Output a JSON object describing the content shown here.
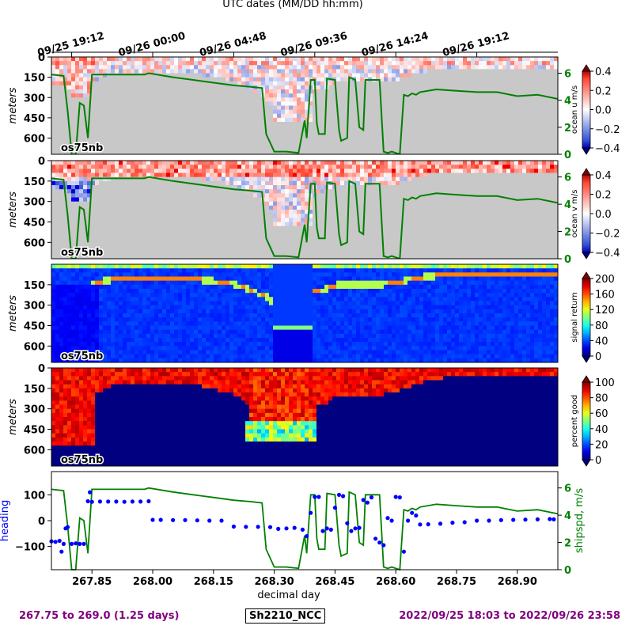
{
  "top_axis": {
    "label": "UTC dates (MM/DD hh:mm)",
    "ticks": [
      {
        "x": 267.8,
        "label": "09/25 19:12"
      },
      {
        "x": 268.0,
        "label": "09/26 00:00"
      },
      {
        "x": 268.2,
        "label": "09/26 04:48"
      },
      {
        "x": 268.4,
        "label": "09/26 09:36"
      },
      {
        "x": 268.6,
        "label": "09/26 14:24"
      },
      {
        "x": 268.8,
        "label": "09/26 19:12"
      }
    ]
  },
  "footer": {
    "range_days": "267.75 to 269.0 (1.25 days)",
    "cruise": "Sh2210_NCC",
    "range_dates": "2022/09/25 18:03 to 2022/09/26 23:58"
  },
  "colors": {
    "shipspeed_line": "#008000",
    "heading_points": "#0000ff",
    "no_data_gray": "#c8c8c8",
    "footer_text": "#800080"
  },
  "chart_data": [
    {
      "type": "heatmap",
      "panel": "ocean_u",
      "instrument_label": "os75nb",
      "ylabel": "meters",
      "yticks": [
        0,
        150,
        300,
        450,
        600
      ],
      "ylim": [
        720,
        0
      ],
      "xlim": [
        267.75,
        269.0
      ],
      "colorbar": {
        "label": "ocean u m/s",
        "ticks": [
          "0.4",
          "0.2",
          "0.0",
          "−0.2",
          "−0.4"
        ],
        "range": [
          -0.4,
          0.4
        ],
        "colormap": "diverging blue-white-red"
      },
      "right_axis": {
        "label": "",
        "ticks": [
          "6",
          "4",
          "2",
          "0"
        ],
        "range": [
          0,
          7.2
        ],
        "color": "#008000"
      }
    },
    {
      "type": "heatmap",
      "panel": "ocean_v",
      "instrument_label": "os75nb",
      "ylabel": "meters",
      "yticks": [
        0,
        150,
        300,
        450,
        600
      ],
      "ylim": [
        720,
        0
      ],
      "xlim": [
        267.75,
        269.0
      ],
      "colorbar": {
        "label": "ocean v m/s",
        "ticks": [
          "0.4",
          "0.2",
          "0.0",
          "−0.2",
          "−0.4"
        ],
        "range": [
          -0.4,
          0.4
        ],
        "colormap": "diverging blue-white-red"
      },
      "right_axis": {
        "label": "",
        "ticks": [
          "6",
          "4",
          "2",
          "0"
        ],
        "range": [
          0,
          7.2
        ],
        "color": "#008000"
      }
    },
    {
      "type": "heatmap",
      "panel": "signal_return",
      "instrument_label": "os75nb",
      "ylabel": "meters",
      "yticks": [
        150,
        300,
        450,
        600
      ],
      "ylim": [
        720,
        0
      ],
      "xlim": [
        267.75,
        269.0
      ],
      "colorbar": {
        "label": "signal return",
        "ticks": [
          "200",
          "160",
          "120",
          "80",
          "40",
          "0"
        ],
        "range": [
          0,
          200
        ],
        "colormap": "jet"
      }
    },
    {
      "type": "heatmap",
      "panel": "percent_good",
      "instrument_label": "os75nb",
      "ylabel": "meters",
      "yticks": [
        0,
        150,
        300,
        450,
        600
      ],
      "ylim": [
        720,
        0
      ],
      "xlim": [
        267.75,
        269.0
      ],
      "colorbar": {
        "label": "percent good",
        "ticks": [
          "100",
          "80",
          "60",
          "40",
          "20",
          "0"
        ],
        "range": [
          0,
          100
        ],
        "colormap": "jet"
      }
    },
    {
      "type": "scatter",
      "panel": "heading_shipspeed",
      "xlabel": "decimal day",
      "xticks": [
        "267.85",
        "268.00",
        "268.15",
        "268.30",
        "268.45",
        "268.60",
        "268.75",
        "268.90"
      ],
      "xlim": [
        267.75,
        269.0
      ],
      "ylabel": "heading",
      "yticks": [
        "100",
        "0",
        "−100"
      ],
      "ylim": [
        -190,
        190
      ],
      "right_axis": {
        "label": "shipspd, m/s",
        "ticks": [
          "6",
          "4",
          "2",
          "0"
        ],
        "range": [
          0,
          7.2
        ]
      },
      "series": [
        {
          "name": "heading",
          "x": [
            267.75,
            267.76,
            267.77,
            267.775,
            267.78,
            267.785,
            267.79,
            267.8,
            267.81,
            267.82,
            267.83,
            267.84,
            267.845,
            267.85,
            267.87,
            267.89,
            267.91,
            267.93,
            267.95,
            267.97,
            267.99,
            268.0,
            268.02,
            268.05,
            268.08,
            268.11,
            268.14,
            268.17,
            268.2,
            268.23,
            268.26,
            268.29,
            268.31,
            268.33,
            268.35,
            268.37,
            268.38,
            268.39,
            268.4,
            268.41,
            268.42,
            268.43,
            268.44,
            268.45,
            268.46,
            268.47,
            268.48,
            268.49,
            268.5,
            268.51,
            268.52,
            268.53,
            268.54,
            268.55,
            268.56,
            268.57,
            268.58,
            268.59,
            268.6,
            268.61,
            268.62,
            268.63,
            268.64,
            268.65,
            268.66,
            268.68,
            268.71,
            268.74,
            268.77,
            268.8,
            268.83,
            268.86,
            268.89,
            268.92,
            268.95,
            268.98,
            268.99
          ],
          "y": [
            -80,
            -82,
            -78,
            -120,
            -90,
            -30,
            -25,
            -90,
            -88,
            -90,
            -90,
            75,
            110,
            73,
            74,
            74,
            74,
            73,
            74,
            74,
            75,
            3,
            3,
            2,
            2,
            1,
            0,
            0,
            -23,
            -24,
            -24,
            -25,
            -32,
            -30,
            -28,
            -35,
            -60,
            30,
            92,
            92,
            -40,
            -30,
            -35,
            50,
            100,
            95,
            -10,
            -40,
            -30,
            -28,
            80,
            70,
            90,
            -70,
            -85,
            -95,
            10,
            0,
            92,
            90,
            -120,
            0,
            30,
            20,
            -15,
            -14,
            -12,
            -8,
            -6,
            0,
            0,
            2,
            3,
            4,
            5,
            6,
            5
          ]
        },
        {
          "name": "shipspd",
          "x": [
            267.75,
            267.78,
            267.79,
            267.8,
            267.81,
            267.82,
            267.83,
            267.84,
            267.85,
            267.9,
            267.98,
            267.99,
            268.05,
            268.1,
            268.15,
            268.2,
            268.24,
            268.27,
            268.28,
            268.3,
            268.33,
            268.36,
            268.375,
            268.38,
            268.39,
            268.4,
            268.405,
            268.41,
            268.425,
            268.43,
            268.45,
            268.46,
            268.465,
            268.48,
            268.485,
            268.5,
            268.51,
            268.52,
            268.525,
            268.56,
            268.57,
            268.58,
            268.59,
            268.6,
            268.61,
            268.62,
            268.63,
            268.64,
            268.65,
            268.66,
            268.7,
            268.75,
            268.8,
            268.85,
            268.9,
            268.95,
            269.0
          ],
          "y": [
            5.9,
            5.8,
            3.2,
            0.0,
            0.0,
            3.8,
            3.6,
            1.2,
            5.9,
            5.9,
            5.9,
            6.0,
            5.7,
            5.5,
            5.3,
            5.1,
            5.0,
            4.9,
            1.5,
            0.2,
            0.2,
            0.1,
            2.5,
            1.2,
            5.5,
            5.5,
            2.3,
            1.5,
            1.5,
            5.6,
            5.5,
            1.8,
            1.0,
            1.2,
            5.7,
            5.5,
            2.0,
            1.8,
            5.5,
            5.5,
            0.2,
            0.1,
            0.2,
            0.1,
            0.0,
            4.4,
            4.3,
            4.5,
            4.4,
            4.6,
            4.8,
            4.7,
            4.6,
            4.6,
            4.3,
            4.4,
            4.1
          ]
        }
      ]
    }
  ]
}
